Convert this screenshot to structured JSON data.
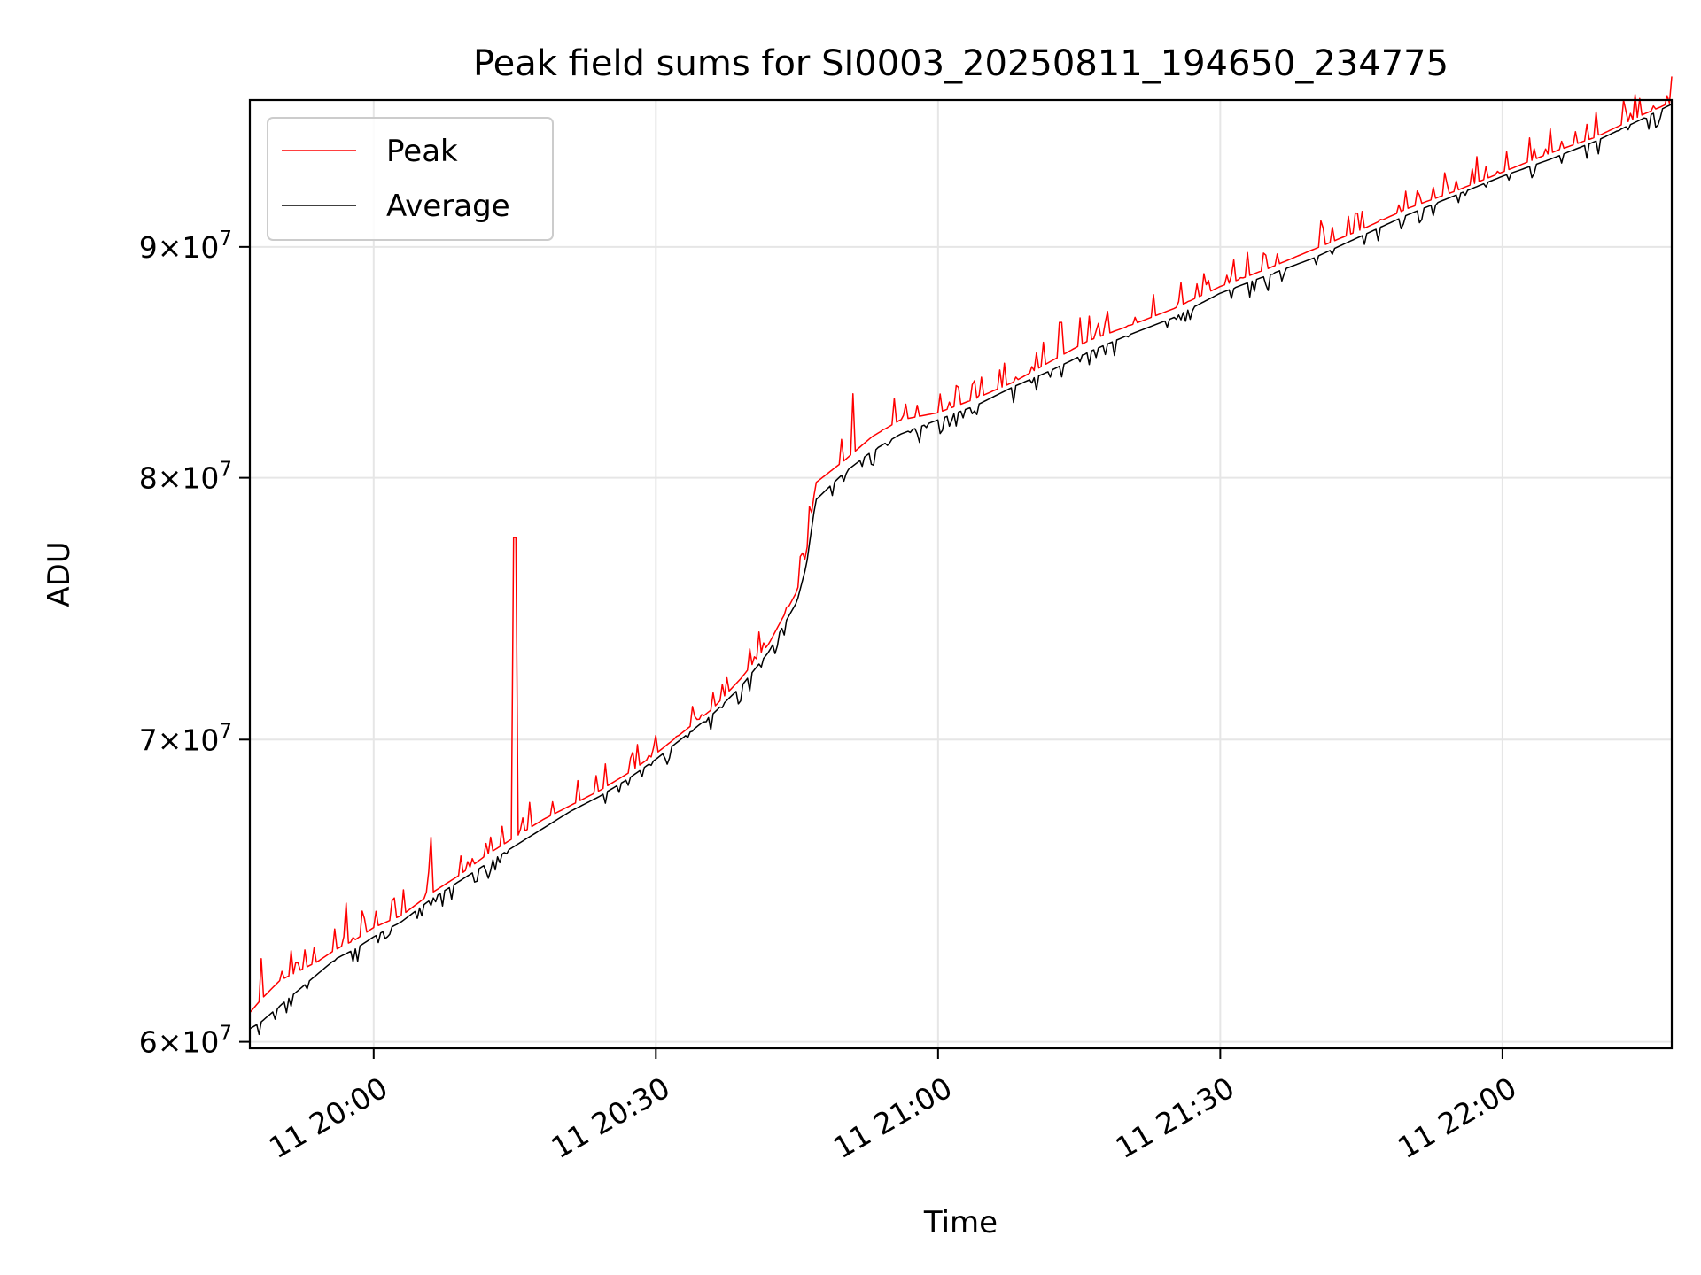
{
  "chart_data": {
    "type": "line",
    "title": "Peak field sums for SI0003_20250811_194650_234775",
    "xlabel": "Time",
    "ylabel": "ADU",
    "yscale": "log",
    "ylim": [
      59800000,
      97000000
    ],
    "xlim": [
      "2025-08-11 19:46:50",
      "2025-08-11 22:18:00"
    ],
    "grid": true,
    "legend_position": "upper-left",
    "x_ticks": [
      {
        "t": "2025-08-11 20:00",
        "label": "11 20:00"
      },
      {
        "t": "2025-08-11 20:30",
        "label": "11 20:30"
      },
      {
        "t": "2025-08-11 21:00",
        "label": "11 21:00"
      },
      {
        "t": "2025-08-11 21:30",
        "label": "11 21:30"
      },
      {
        "t": "2025-08-11 22:00",
        "label": "11 22:00"
      }
    ],
    "y_ticks": [
      {
        "value": 60000000,
        "mantissa": "6",
        "exponent": "7"
      },
      {
        "value": 70000000,
        "mantissa": "7",
        "exponent": "7"
      },
      {
        "value": 80000000,
        "mantissa": "8",
        "exponent": "7"
      },
      {
        "value": 90000000,
        "mantissa": "9",
        "exponent": "7"
      }
    ],
    "x": [
      "2025-08-11 19:46:50",
      "2025-08-11 19:48:00",
      "2025-08-11 19:50:00",
      "2025-08-11 19:52:00",
      "2025-08-11 19:54:00",
      "2025-08-11 19:56:00",
      "2025-08-11 19:58:00",
      "2025-08-11 20:00:00",
      "2025-08-11 20:03:00",
      "2025-08-11 20:06:00",
      "2025-08-11 20:09:00",
      "2025-08-11 20:12:00",
      "2025-08-11 20:15:00",
      "2025-08-11 20:18:00",
      "2025-08-11 20:21:00",
      "2025-08-11 20:24:00",
      "2025-08-11 20:27:00",
      "2025-08-11 20:30:00",
      "2025-08-11 20:33:00",
      "2025-08-11 20:36:00",
      "2025-08-11 20:39:00",
      "2025-08-11 20:42:00",
      "2025-08-11 20:45:00",
      "2025-08-11 20:46:00",
      "2025-08-11 20:47:00",
      "2025-08-11 20:50:00",
      "2025-08-11 20:53:00",
      "2025-08-11 20:56:00",
      "2025-08-11 21:00:00",
      "2025-08-11 21:04:00",
      "2025-08-11 21:08:00",
      "2025-08-11 21:12:00",
      "2025-08-11 21:16:00",
      "2025-08-11 21:20:00",
      "2025-08-11 21:25:00",
      "2025-08-11 21:30:00",
      "2025-08-11 21:35:00",
      "2025-08-11 21:40:00",
      "2025-08-11 21:45:00",
      "2025-08-11 21:50:00",
      "2025-08-11 21:55:00",
      "2025-08-11 22:00:00",
      "2025-08-11 22:05:00",
      "2025-08-11 22:10:00",
      "2025-08-11 22:15:00",
      "2025-08-11 22:18:00"
    ],
    "series": [
      {
        "name": "Peak",
        "color": "#ff0000",
        "values": [
          60900000,
          61300000,
          61900000,
          62200000,
          62500000,
          62900000,
          63200000,
          63600000,
          64000000,
          64700000,
          65300000,
          66000000,
          66600000,
          67200000,
          67700000,
          68200000,
          68800000,
          69500000,
          70300000,
          71100000,
          72200000,
          73500000,
          75500000,
          77000000,
          79800000,
          80700000,
          81700000,
          82400000,
          82700000,
          83300000,
          84000000,
          84900000,
          85800000,
          86400000,
          87200000,
          88200000,
          89000000,
          89900000,
          90800000,
          91800000,
          92600000,
          93500000,
          94400000,
          95200000,
          96300000,
          96900000
        ],
        "spikes": [
          {
            "t": "2025-08-11 19:48:00",
            "value": 62600000
          },
          {
            "t": "2025-08-11 19:57:00",
            "value": 64400000
          },
          {
            "t": "2025-08-11 20:06:00",
            "value": 66600000
          },
          {
            "t": "2025-08-11 20:15:00",
            "value": 77600000
          },
          {
            "t": "2025-08-11 20:51:00",
            "value": 83500000
          },
          {
            "t": "2025-08-11 21:13:00",
            "value": 86600000
          },
          {
            "t": "2025-08-11 21:15:00",
            "value": 86800000
          }
        ]
      },
      {
        "name": "Average",
        "color": "#000000",
        "values": [
          60400000,
          60600000,
          61100000,
          61600000,
          62100000,
          62600000,
          62900000,
          63300000,
          63800000,
          64500000,
          65100000,
          65700000,
          66300000,
          66900000,
          67500000,
          68000000,
          68600000,
          69300000,
          70100000,
          70900000,
          71900000,
          73200000,
          75100000,
          76500000,
          79100000,
          80200000,
          81100000,
          81800000,
          82400000,
          83000000,
          83800000,
          84500000,
          85300000,
          86000000,
          86800000,
          87900000,
          88700000,
          89500000,
          90500000,
          91500000,
          92400000,
          93300000,
          94100000,
          95000000,
          96100000,
          96800000
        ]
      }
    ]
  }
}
